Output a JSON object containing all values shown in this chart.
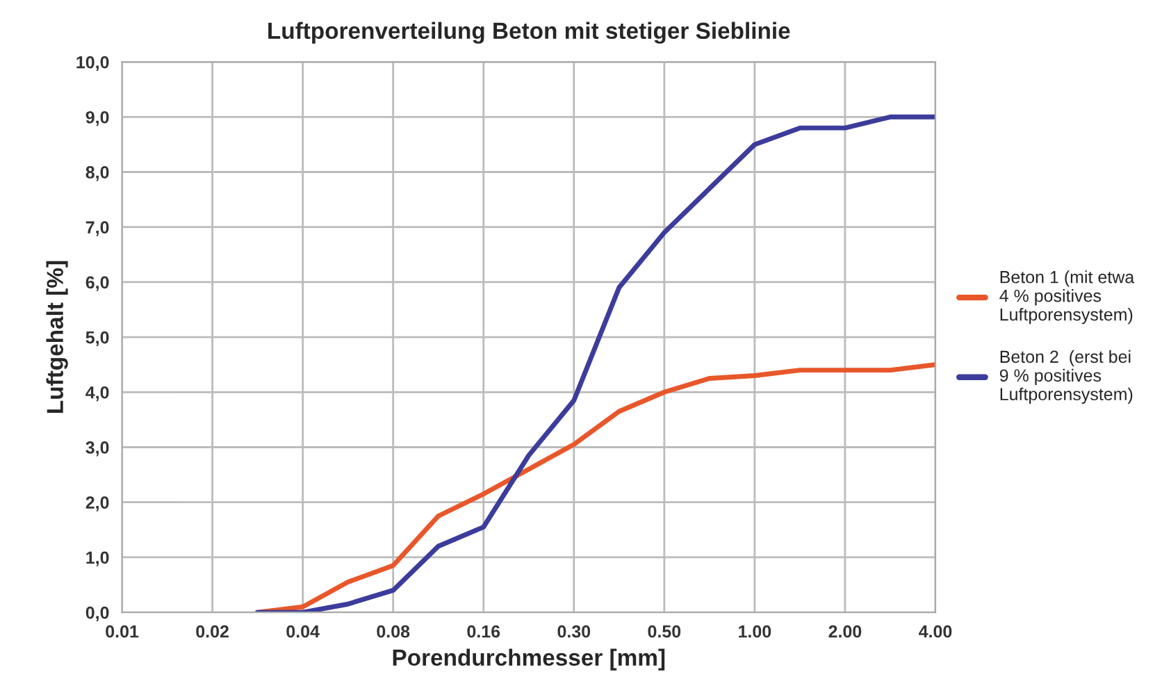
{
  "chart_data": {
    "type": "line",
    "title": "Luftporenverteilung Beton mit stetiger Sieblinie",
    "xlabel": "Porendurchmesser [mm]",
    "ylabel": "Luftgehalt [%]",
    "categories": [
      "0.01",
      null,
      "0.02",
      null,
      "0.04",
      null,
      "0.08",
      null,
      "0.16",
      null,
      "0.30",
      null,
      "0.50",
      null,
      "1.00",
      null,
      "2.00",
      null,
      "4.00"
    ],
    "ylim": [
      0,
      10
    ],
    "yticks": [
      {
        "value": 0,
        "label": "0,0"
      },
      {
        "value": 1,
        "label": "1,0"
      },
      {
        "value": 2,
        "label": "2,0"
      },
      {
        "value": 3,
        "label": "3,0"
      },
      {
        "value": 4,
        "label": "4,0"
      },
      {
        "value": 5,
        "label": "5,0"
      },
      {
        "value": 6,
        "label": "6,0"
      },
      {
        "value": 7,
        "label": "7,0"
      },
      {
        "value": 8,
        "label": "8,0"
      },
      {
        "value": 9,
        "label": "9,0"
      },
      {
        "value": 10,
        "label": "10,0"
      }
    ],
    "grid": true,
    "legend": "right",
    "line_style": "solid",
    "series": [
      {
        "name": "Beton 1 (mit etwa\n4 % positives\nLuftporensystem)",
        "color": "#e8572a",
        "values": [
          null,
          null,
          null,
          0,
          0.1,
          0.55,
          0.85,
          1.75,
          2.15,
          2.6,
          3.05,
          3.65,
          4.0,
          4.25,
          4.3,
          4.4,
          4.4,
          4.4,
          4.5
        ]
      },
      {
        "name": "Beton 2  (erst bei\n9 % positives\nLuftporensystem)",
        "color": "#3c3c9c",
        "values": [
          null,
          null,
          null,
          0,
          0,
          0.15,
          0.4,
          1.2,
          1.55,
          2.85,
          3.85,
          5.9,
          6.9,
          7.7,
          8.5,
          8.8,
          8.8,
          9.0,
          9.0
        ]
      }
    ]
  }
}
